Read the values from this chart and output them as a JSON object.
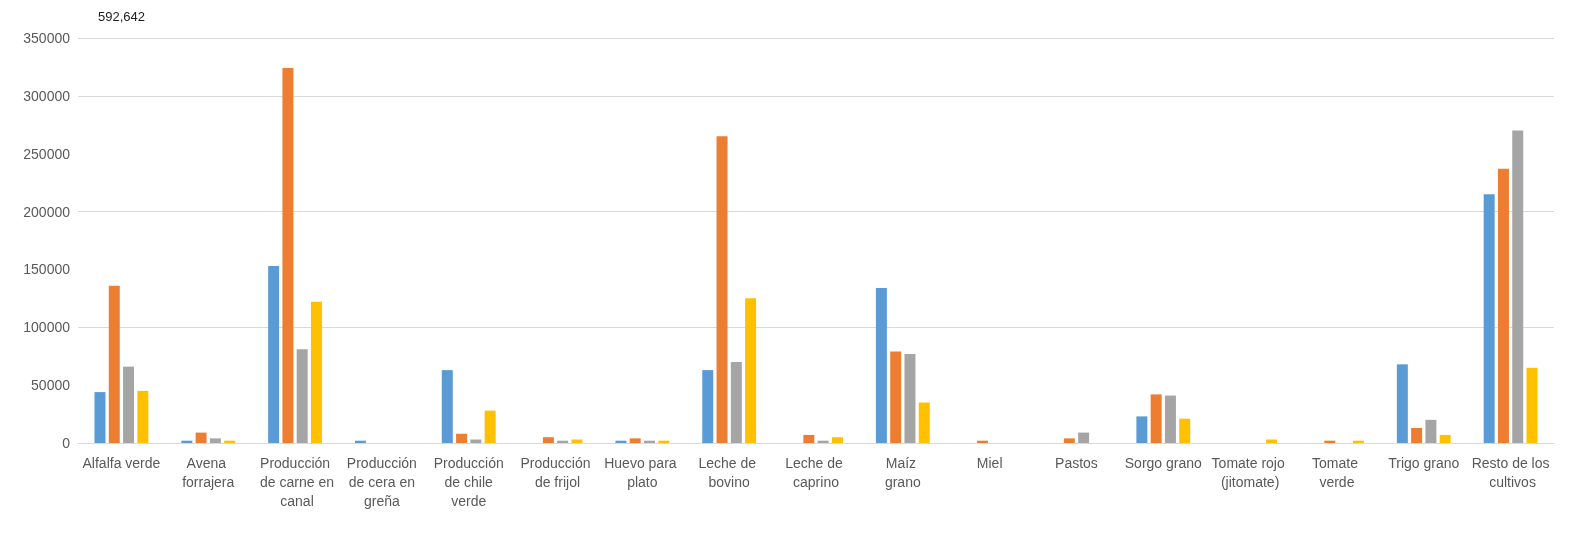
{
  "chart_data": {
    "type": "bar",
    "annotations": [
      "592,642"
    ],
    "categories": [
      "Alfalfa verde",
      "Avena forrajera",
      "Producción de carne en canal",
      "Producción de cera en greña",
      "Producción de chile verde",
      "Producción de frijol",
      "Huevo para plato",
      "Leche de bovino",
      "Leche de caprino",
      "Maíz grano",
      "Miel",
      "Pastos",
      "Sorgo grano",
      "Tomate rojo (jitomate)",
      "Tomate verde",
      "Trigo grano",
      "Resto de los cultivos"
    ],
    "series": [
      {
        "color": "#5b9bd5",
        "values": [
          44000,
          2000,
          153000,
          2000,
          63000,
          0,
          2000,
          63000,
          0,
          134000,
          0,
          0,
          23000,
          0,
          0,
          68000,
          215000
        ]
      },
      {
        "color": "#ed7d31",
        "values": [
          136000,
          9000,
          324000,
          0,
          8000,
          5000,
          4000,
          265000,
          7000,
          79000,
          2000,
          4000,
          42000,
          0,
          2000,
          13000,
          237000
        ]
      },
      {
        "color": "#a5a5a5",
        "values": [
          66000,
          4000,
          81000,
          0,
          3000,
          2000,
          2000,
          70000,
          2000,
          77000,
          0,
          9000,
          41000,
          0,
          0,
          20000,
          270000
        ]
      },
      {
        "color": "#ffc000",
        "values": [
          45000,
          2000,
          122000,
          0,
          28000,
          3000,
          2000,
          125000,
          5000,
          35000,
          0,
          0,
          21000,
          3000,
          2000,
          7000,
          65000
        ]
      }
    ],
    "ylim": [
      0,
      350000
    ],
    "yticks": [
      0,
      50000,
      100000,
      150000,
      200000,
      250000,
      300000,
      350000
    ],
    "grid": "y"
  }
}
